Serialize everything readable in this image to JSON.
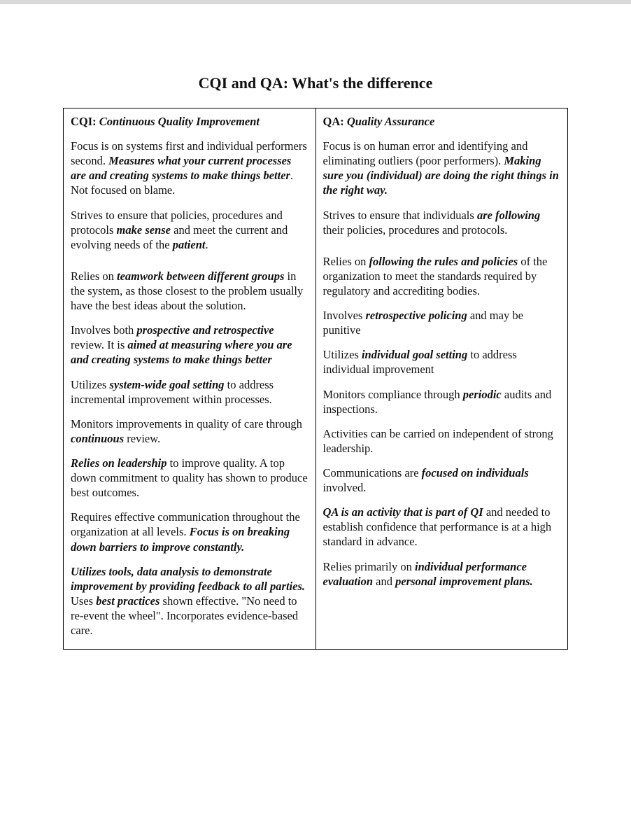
{
  "title": "CQI and QA: What's the difference",
  "columns": {
    "left": {
      "abbr": "CQI:",
      "full": "Continuous Quality Improvement"
    },
    "right": {
      "abbr": "QA:",
      "full": "Quality Assurance"
    }
  },
  "rows": [
    {
      "left": [
        {
          "t": "Focus is on systems first and individual performers second. "
        },
        {
          "t": "Measures what your current processes are and creating systems to make things better",
          "s": "emb"
        },
        {
          "t": ". Not focused on blame."
        }
      ],
      "right": [
        {
          "t": "Focus is on human error and identifying and eliminating outliers (poor performers). "
        },
        {
          "t": "Making sure you (individual) are doing the right things in the right way.",
          "s": "emb"
        }
      ]
    },
    {
      "left": [
        {
          "t": "Strives to ensure that policies, procedures and protocols "
        },
        {
          "t": "make sense",
          "s": "emb"
        },
        {
          "t": " and meet the current and evolving needs of the "
        },
        {
          "t": "patient",
          "s": "emb"
        },
        {
          "t": "."
        }
      ],
      "right": [
        {
          "t": "Strives to ensure that individuals "
        },
        {
          "t": "are following",
          "s": "emb"
        },
        {
          "t": " their policies, procedures and protocols."
        }
      ],
      "gap_after": 24
    },
    {
      "left": [
        {
          "t": "Relies on "
        },
        {
          "t": "teamwork between different groups",
          "s": "emb"
        },
        {
          "t": " in the system, as those closest to the problem usually have the best ideas about the solution."
        }
      ],
      "right": [
        {
          "t": "Relies on "
        },
        {
          "t": "following the rules and policies",
          "s": "emb"
        },
        {
          "t": " of the organization to meet the standards required by regulatory and accrediting bodies."
        }
      ]
    },
    {
      "left": [
        {
          "t": "Involves both "
        },
        {
          "t": "prospective and retrospective",
          "s": "emb"
        },
        {
          "t": " review. It is "
        },
        {
          "t": "aimed at measuring where you are and creating systems to make things better",
          "s": "emb"
        }
      ],
      "right": [
        {
          "t": "Involves "
        },
        {
          "t": "retrospective policing",
          "s": "emb"
        },
        {
          "t": " and may be punitive"
        }
      ]
    },
    {
      "left": [
        {
          "t": "Utilizes "
        },
        {
          "t": "system-wide goal setting",
          "s": "emb"
        },
        {
          "t": " to address incremental improvement within processes."
        }
      ],
      "right": [
        {
          "t": "Utilizes "
        },
        {
          "t": "individual goal setting",
          "s": "emb"
        },
        {
          "t": " to address individual improvement"
        }
      ]
    },
    {
      "left": [
        {
          "t": "Monitors improvements in quality of care through "
        },
        {
          "t": "continuous",
          "s": "emb"
        },
        {
          "t": " review."
        }
      ],
      "right": [
        {
          "t": "Monitors compliance through "
        },
        {
          "t": "periodic",
          "s": "emb"
        },
        {
          "t": " audits and inspections."
        }
      ]
    },
    {
      "left": [
        {
          "t": "Relies on leadership",
          "s": "emb"
        },
        {
          "t": " to improve quality. A top down commitment to quality has shown to produce best outcomes."
        }
      ],
      "right": [
        {
          "t": "Activities can be carried on independent of strong leadership."
        }
      ]
    },
    {
      "left": [
        {
          "t": "Requires effective communication throughout the organization at all levels. "
        },
        {
          "t": "Focus is on breaking down barriers to improve constantly.",
          "s": "emb"
        }
      ],
      "right": [
        {
          "t": "Communications are "
        },
        {
          "t": "focused on individuals",
          "s": "emb"
        },
        {
          "t": " involved."
        }
      ]
    },
    {
      "left": [
        {
          "t": "Utilizes tools, data analysis to demonstrate improvement by providing feedback to all parties.",
          "s": "emb"
        },
        {
          "t": " Uses "
        },
        {
          "t": "best practices",
          "s": "emb"
        },
        {
          "t": " shown effective. \"No need to re-event the wheel\".  Incorporates evidence-based care."
        }
      ],
      "right_multi": [
        [
          {
            "t": "QA is an activity that is part of QI",
            "s": "emb"
          },
          {
            "t": " and needed to establish confidence that performance is at a high standard in advance."
          }
        ],
        [
          {
            "t": "Relies primarily on "
          },
          {
            "t": "individual performance evaluation",
            "s": "emb"
          },
          {
            "t": " and "
          },
          {
            "t": "personal improvement plans.",
            "s": "emb"
          }
        ]
      ]
    }
  ]
}
